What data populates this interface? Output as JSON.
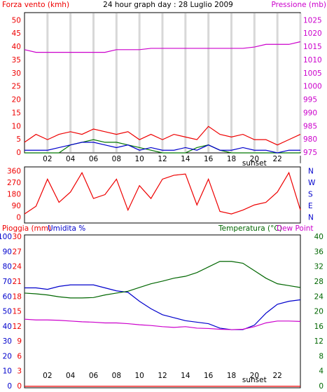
{
  "chart_data": [
    {
      "type": "line",
      "title": "24 hour graph day : 28 Luglio 2009",
      "ylabel": "Forza vento (kmh)",
      "y2label": "Pressione (mb)",
      "x": [
        0,
        1,
        2,
        3,
        4,
        5,
        6,
        7,
        8,
        9,
        10,
        11,
        12,
        13,
        14,
        15,
        16,
        17,
        18,
        19,
        20,
        21,
        22,
        23,
        24
      ],
      "xlim": [
        0,
        24
      ],
      "xticks": [
        {
          "value": 2,
          "label": "02"
        },
        {
          "value": 4,
          "label": "04"
        },
        {
          "value": 6,
          "label": "06"
        },
        {
          "value": 8,
          "label": "08"
        },
        10,
        12,
        14,
        16,
        18,
        20,
        22,
        {
          "value": 24,
          "label": "|"
        }
      ],
      "ylim": [
        0,
        53
      ],
      "yticks": [
        0,
        5,
        10,
        15,
        20,
        25,
        30,
        35,
        40,
        45,
        50
      ],
      "y2lim": [
        975,
        1028
      ],
      "y2ticks": [
        975,
        980,
        985,
        990,
        995,
        1000,
        1005,
        1010,
        1015,
        1020,
        1025
      ],
      "grid": true,
      "annotations": [
        {
          "text": "sunset",
          "x": 20
        }
      ],
      "series": [
        {
          "color": "#ee0000",
          "values": [
            4,
            7,
            5,
            7,
            8,
            7,
            9,
            8,
            7,
            8,
            5,
            7,
            5,
            7,
            6,
            5,
            10,
            7,
            6,
            7,
            5,
            5,
            3,
            5,
            7
          ]
        },
        {
          "color": "#007700",
          "values": [
            0,
            0,
            0,
            0,
            3,
            4,
            5,
            4,
            4,
            3,
            2,
            1,
            0,
            0,
            0,
            2,
            3,
            1,
            0,
            0,
            0,
            0,
            0,
            0,
            0
          ]
        },
        {
          "color": "#0000cc",
          "values": [
            1,
            1,
            1,
            2,
            3,
            4,
            4,
            3,
            2,
            3,
            1,
            2,
            1,
            1,
            2,
            1,
            3,
            1,
            1,
            2,
            1,
            1,
            0,
            1,
            1
          ]
        },
        {
          "color": "#cc00cc",
          "axis": "y2",
          "values": [
            1014,
            1013,
            1013,
            1013,
            1013,
            1013,
            1013,
            1013,
            1014,
            1014,
            1014,
            1014.5,
            1014.5,
            1014.5,
            1014.5,
            1014.5,
            1014.5,
            1014.5,
            1014.5,
            1014.5,
            1015,
            1016,
            1016,
            1016,
            1017
          ]
        }
      ]
    },
    {
      "type": "line",
      "x": [
        0,
        1,
        2,
        3,
        4,
        5,
        6,
        7,
        8,
        9,
        10,
        11,
        12,
        13,
        14,
        15,
        16,
        17,
        18,
        19,
        20,
        21,
        22,
        23,
        24
      ],
      "xlim": [
        0,
        24
      ],
      "ylim": [
        -40,
        395
      ],
      "yticks": [
        0,
        90,
        180,
        270,
        360
      ],
      "y2lim": [
        -40,
        395
      ],
      "y2ticks": [
        {
          "value": 0,
          "label": "N"
        },
        {
          "value": 90,
          "label": "E"
        },
        {
          "value": 180,
          "label": "S"
        },
        {
          "value": 270,
          "label": "W"
        },
        {
          "value": 360,
          "label": "N"
        }
      ],
      "series": [
        {
          "color": "#ee0000",
          "values": [
            30,
            90,
            300,
            120,
            200,
            350,
            150,
            180,
            300,
            60,
            250,
            150,
            300,
            330,
            340,
            100,
            300,
            50,
            30,
            60,
            100,
            120,
            200,
            350,
            60
          ]
        }
      ]
    },
    {
      "type": "line",
      "x": [
        0,
        1,
        2,
        3,
        4,
        5,
        6,
        7,
        8,
        9,
        10,
        11,
        12,
        13,
        14,
        15,
        16,
        17,
        18,
        19,
        20,
        21,
        22,
        23,
        24
      ],
      "xlim": [
        0,
        24
      ],
      "xticks": [
        {
          "value": 2,
          "label": "02"
        },
        {
          "value": 4,
          "label": "04"
        },
        {
          "value": 6,
          "label": "06"
        },
        {
          "value": 8,
          "label": "08"
        },
        10,
        12,
        14,
        16,
        18,
        20,
        22,
        {
          "value": 24,
          "label": "|"
        }
      ],
      "annotations": [
        {
          "text": "sunset",
          "x": 20
        }
      ],
      "ylim": [
        -1,
        101.5
      ],
      "yticks": [
        0,
        10,
        20,
        30,
        40,
        50,
        60,
        70,
        80,
        90,
        100
      ],
      "y3lim": [
        -0.3,
        30.45
      ],
      "y3ticks": [
        0,
        3,
        6,
        9,
        12,
        15,
        18,
        21,
        24,
        27,
        30
      ],
      "y2lim": [
        -0.4,
        40.6
      ],
      "y2ticks": [
        0,
        4,
        8,
        12,
        16,
        20,
        24,
        28,
        32,
        36,
        40
      ],
      "series": [
        {
          "name": "Pioggia (mm)",
          "color": "#ee0000",
          "axis": "y3",
          "values": [
            0,
            0,
            0,
            0,
            0,
            0,
            0,
            0,
            0,
            0,
            0,
            0,
            0,
            0,
            0,
            0,
            0,
            0,
            0,
            0,
            0,
            0,
            0,
            0,
            0
          ]
        },
        {
          "name": "Umidita %",
          "color": "#0000cc",
          "values": [
            66,
            66,
            65,
            67,
            68,
            68,
            68,
            66,
            64,
            63,
            57,
            52,
            48,
            46,
            44,
            43,
            42,
            39,
            38,
            38,
            41,
            49,
            55,
            57,
            58
          ]
        },
        {
          "name": "Temperatura (°C)",
          "color": "#006600",
          "axis": "y2",
          "values": [
            25,
            24.8,
            24.5,
            24,
            23.7,
            23.7,
            23.8,
            24.5,
            25,
            25.5,
            26.5,
            27.5,
            28.2,
            29,
            29.5,
            30.5,
            32,
            33.5,
            33.5,
            33,
            31,
            29,
            27.5,
            27,
            26.5
          ]
        },
        {
          "name": "Dew Point",
          "color": "#cc00cc",
          "axis": "y2",
          "values": [
            18,
            17.8,
            17.8,
            17.7,
            17.5,
            17.3,
            17.2,
            17,
            17,
            16.8,
            16.5,
            16.3,
            16,
            15.8,
            16,
            15.6,
            15.5,
            15.3,
            15.2,
            15.3,
            16,
            17,
            17.5,
            17.5,
            17.4
          ]
        }
      ]
    }
  ]
}
